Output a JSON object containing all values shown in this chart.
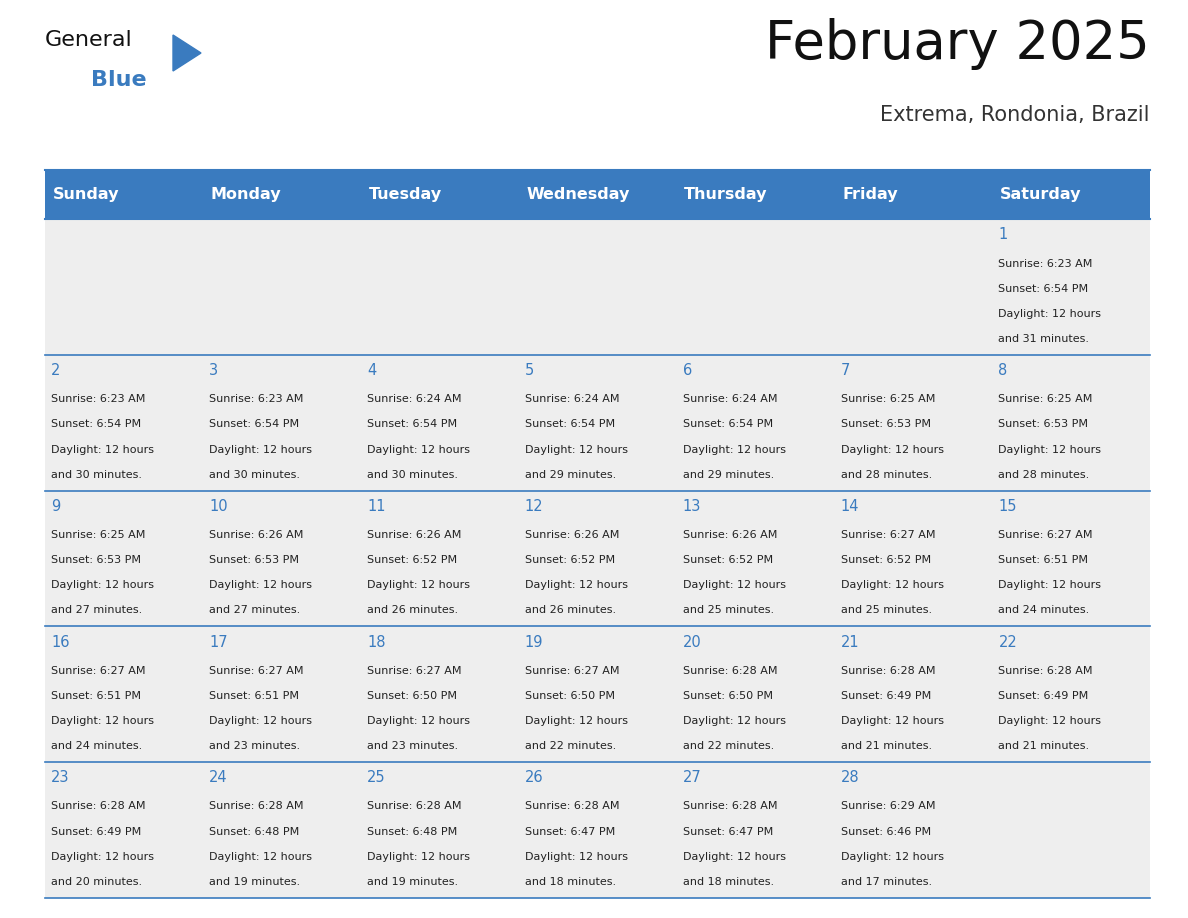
{
  "title": "February 2025",
  "subtitle": "Extrema, Rondonia, Brazil",
  "days_of_week": [
    "Sunday",
    "Monday",
    "Tuesday",
    "Wednesday",
    "Thursday",
    "Friday",
    "Saturday"
  ],
  "header_bg": "#3a7bbf",
  "header_text": "#ffffff",
  "cell_bg_light": "#eeeeee",
  "cell_bg_white": "#ffffff",
  "border_color": "#3a7bbf",
  "day_num_color": "#3a7bbf",
  "info_text_color": "#222222",
  "title_color": "#111111",
  "subtitle_color": "#333333",
  "logo_general_color": "#111111",
  "logo_blue_color": "#3a7bbf",
  "weeks": [
    [
      null,
      null,
      null,
      null,
      null,
      null,
      1
    ],
    [
      2,
      3,
      4,
      5,
      6,
      7,
      8
    ],
    [
      9,
      10,
      11,
      12,
      13,
      14,
      15
    ],
    [
      16,
      17,
      18,
      19,
      20,
      21,
      22
    ],
    [
      23,
      24,
      25,
      26,
      27,
      28,
      null
    ]
  ],
  "day_data": {
    "1": {
      "sunrise": "6:23 AM",
      "sunset": "6:54 PM",
      "daylight_hours": "12 hours",
      "daylight_mins": "and 31 minutes."
    },
    "2": {
      "sunrise": "6:23 AM",
      "sunset": "6:54 PM",
      "daylight_hours": "12 hours",
      "daylight_mins": "and 30 minutes."
    },
    "3": {
      "sunrise": "6:23 AM",
      "sunset": "6:54 PM",
      "daylight_hours": "12 hours",
      "daylight_mins": "and 30 minutes."
    },
    "4": {
      "sunrise": "6:24 AM",
      "sunset": "6:54 PM",
      "daylight_hours": "12 hours",
      "daylight_mins": "and 30 minutes."
    },
    "5": {
      "sunrise": "6:24 AM",
      "sunset": "6:54 PM",
      "daylight_hours": "12 hours",
      "daylight_mins": "and 29 minutes."
    },
    "6": {
      "sunrise": "6:24 AM",
      "sunset": "6:54 PM",
      "daylight_hours": "12 hours",
      "daylight_mins": "and 29 minutes."
    },
    "7": {
      "sunrise": "6:25 AM",
      "sunset": "6:53 PM",
      "daylight_hours": "12 hours",
      "daylight_mins": "and 28 minutes."
    },
    "8": {
      "sunrise": "6:25 AM",
      "sunset": "6:53 PM",
      "daylight_hours": "12 hours",
      "daylight_mins": "and 28 minutes."
    },
    "9": {
      "sunrise": "6:25 AM",
      "sunset": "6:53 PM",
      "daylight_hours": "12 hours",
      "daylight_mins": "and 27 minutes."
    },
    "10": {
      "sunrise": "6:26 AM",
      "sunset": "6:53 PM",
      "daylight_hours": "12 hours",
      "daylight_mins": "and 27 minutes."
    },
    "11": {
      "sunrise": "6:26 AM",
      "sunset": "6:52 PM",
      "daylight_hours": "12 hours",
      "daylight_mins": "and 26 minutes."
    },
    "12": {
      "sunrise": "6:26 AM",
      "sunset": "6:52 PM",
      "daylight_hours": "12 hours",
      "daylight_mins": "and 26 minutes."
    },
    "13": {
      "sunrise": "6:26 AM",
      "sunset": "6:52 PM",
      "daylight_hours": "12 hours",
      "daylight_mins": "and 25 minutes."
    },
    "14": {
      "sunrise": "6:27 AM",
      "sunset": "6:52 PM",
      "daylight_hours": "12 hours",
      "daylight_mins": "and 25 minutes."
    },
    "15": {
      "sunrise": "6:27 AM",
      "sunset": "6:51 PM",
      "daylight_hours": "12 hours",
      "daylight_mins": "and 24 minutes."
    },
    "16": {
      "sunrise": "6:27 AM",
      "sunset": "6:51 PM",
      "daylight_hours": "12 hours",
      "daylight_mins": "and 24 minutes."
    },
    "17": {
      "sunrise": "6:27 AM",
      "sunset": "6:51 PM",
      "daylight_hours": "12 hours",
      "daylight_mins": "and 23 minutes."
    },
    "18": {
      "sunrise": "6:27 AM",
      "sunset": "6:50 PM",
      "daylight_hours": "12 hours",
      "daylight_mins": "and 23 minutes."
    },
    "19": {
      "sunrise": "6:27 AM",
      "sunset": "6:50 PM",
      "daylight_hours": "12 hours",
      "daylight_mins": "and 22 minutes."
    },
    "20": {
      "sunrise": "6:28 AM",
      "sunset": "6:50 PM",
      "daylight_hours": "12 hours",
      "daylight_mins": "and 22 minutes."
    },
    "21": {
      "sunrise": "6:28 AM",
      "sunset": "6:49 PM",
      "daylight_hours": "12 hours",
      "daylight_mins": "and 21 minutes."
    },
    "22": {
      "sunrise": "6:28 AM",
      "sunset": "6:49 PM",
      "daylight_hours": "12 hours",
      "daylight_mins": "and 21 minutes."
    },
    "23": {
      "sunrise": "6:28 AM",
      "sunset": "6:49 PM",
      "daylight_hours": "12 hours",
      "daylight_mins": "and 20 minutes."
    },
    "24": {
      "sunrise": "6:28 AM",
      "sunset": "6:48 PM",
      "daylight_hours": "12 hours",
      "daylight_mins": "and 19 minutes."
    },
    "25": {
      "sunrise": "6:28 AM",
      "sunset": "6:48 PM",
      "daylight_hours": "12 hours",
      "daylight_mins": "and 19 minutes."
    },
    "26": {
      "sunrise": "6:28 AM",
      "sunset": "6:47 PM",
      "daylight_hours": "12 hours",
      "daylight_mins": "and 18 minutes."
    },
    "27": {
      "sunrise": "6:28 AM",
      "sunset": "6:47 PM",
      "daylight_hours": "12 hours",
      "daylight_mins": "and 18 minutes."
    },
    "28": {
      "sunrise": "6:29 AM",
      "sunset": "6:46 PM",
      "daylight_hours": "12 hours",
      "daylight_mins": "and 17 minutes."
    }
  }
}
